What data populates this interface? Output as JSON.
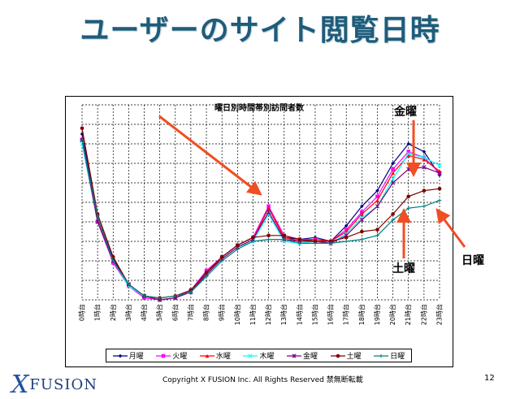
{
  "slide": {
    "title": "ユーザーのサイト閲覧日時",
    "page_number": "12",
    "copyright": "Copyright X FUSION Inc. All Rights Reserved 禁無断転載",
    "logo_text": "FUSION",
    "logo_mark": "X"
  },
  "annotations": {
    "kin": "金曜",
    "do": "土曜",
    "nichi": "日曜"
  },
  "colors": {
    "title": "#1f5c7a",
    "arrow": "#f04e23"
  },
  "chart_data": {
    "type": "line",
    "title": "曜日別時間帯別訪問者数",
    "categories": [
      "0時台",
      "1時台",
      "2時台",
      "3時台",
      "4時台",
      "5時台",
      "6時台",
      "7時台",
      "8時台",
      "9時台",
      "10時台",
      "11時台",
      "12時台",
      "13時台",
      "14時台",
      "15時台",
      "16時台",
      "17時台",
      "18時台",
      "19時台",
      "20時台",
      "21時台",
      "22時台",
      "23時台"
    ],
    "ylim": [
      0,
      100
    ],
    "grid": true,
    "legend": "bottom",
    "series": [
      {
        "name": "月曜",
        "color": "#000080",
        "marker": "diamond",
        "values": [
          85,
          43,
          21,
          8,
          2,
          0,
          1,
          5,
          14,
          22,
          28,
          32,
          47,
          32,
          31,
          32,
          30,
          38,
          48,
          56,
          70,
          80,
          76,
          64
        ]
      },
      {
        "name": "火曜",
        "color": "#ff00ff",
        "marker": "square",
        "values": [
          82,
          40,
          19,
          7,
          1,
          0,
          1,
          5,
          15,
          22,
          28,
          32,
          48,
          33,
          31,
          31,
          30,
          36,
          45,
          53,
          67,
          76,
          73,
          65
        ]
      },
      {
        "name": "水曜",
        "color": "#ff0000",
        "marker": "triangle",
        "values": [
          83,
          41,
          20,
          8,
          2,
          0,
          1,
          4,
          14,
          21,
          27,
          31,
          47,
          32,
          30,
          31,
          30,
          35,
          44,
          51,
          65,
          74,
          72,
          66
        ]
      },
      {
        "name": "木曜",
        "color": "#00ffff",
        "marker": "x",
        "values": [
          80,
          40,
          20,
          7,
          2,
          0,
          1,
          4,
          13,
          21,
          27,
          30,
          44,
          30,
          29,
          30,
          29,
          34,
          42,
          48,
          62,
          75,
          73,
          69
        ]
      },
      {
        "name": "金曜",
        "color": "#800080",
        "marker": "star",
        "values": [
          82,
          40,
          20,
          8,
          2,
          0,
          1,
          4,
          13,
          21,
          27,
          31,
          45,
          31,
          30,
          30,
          29,
          33,
          41,
          48,
          60,
          67,
          68,
          65
        ]
      },
      {
        "name": "土曜",
        "color": "#800000",
        "marker": "circle",
        "values": [
          88,
          44,
          22,
          8,
          2,
          1,
          2,
          5,
          14,
          22,
          28,
          32,
          33,
          33,
          31,
          30,
          30,
          32,
          35,
          36,
          44,
          53,
          56,
          57
        ]
      },
      {
        "name": "日曜",
        "color": "#008080",
        "marker": "plus",
        "values": [
          82,
          43,
          20,
          8,
          2,
          1,
          2,
          4,
          12,
          20,
          26,
          30,
          31,
          31,
          29,
          29,
          29,
          30,
          31,
          33,
          41,
          47,
          48,
          51
        ]
      }
    ]
  }
}
